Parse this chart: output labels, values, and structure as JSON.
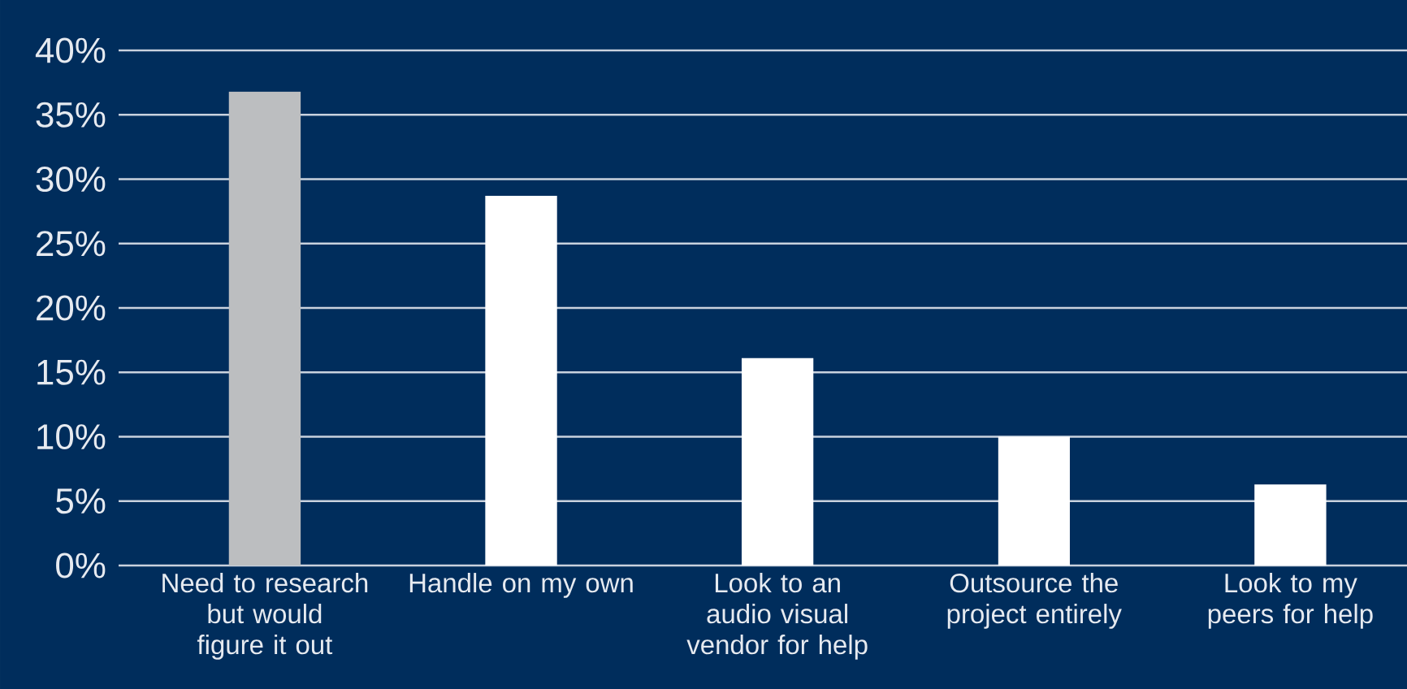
{
  "chart_data": {
    "type": "bar",
    "categories": [
      "Need to research but would figure it out",
      "Handle on my own",
      "Look to an audio visual vendor for help",
      "Outsource the project entirely",
      "Look to my peers for help"
    ],
    "values": [
      36.8,
      28.7,
      16.1,
      10,
      6.3
    ],
    "colors": [
      "#bcbec0",
      "#ffffff",
      "#ffffff",
      "#ffffff",
      "#ffffff"
    ],
    "ylim": [
      0,
      40
    ],
    "yticks": [
      {
        "value": 0,
        "label": "0%"
      },
      {
        "value": 5,
        "label": "5%"
      },
      {
        "value": 10,
        "label": "10%"
      },
      {
        "value": 15,
        "label": "15%"
      },
      {
        "value": 20,
        "label": "20%"
      },
      {
        "value": 25,
        "label": "25%"
      },
      {
        "value": 30,
        "label": "30%"
      },
      {
        "value": 35,
        "label": "35%"
      },
      {
        "value": 40,
        "label": "40%"
      }
    ],
    "grid": "y"
  }
}
